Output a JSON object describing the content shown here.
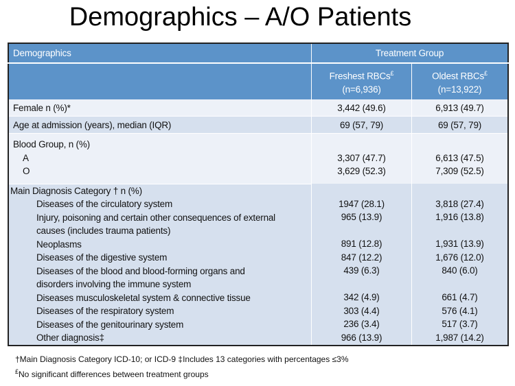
{
  "title": "Demographics – A/O Patients",
  "header": {
    "col1": "Demographics",
    "group": "Treatment Group",
    "fresh": "Freshest RBCs",
    "fresh_n": "(n=6,936)",
    "old": "Oldest RBCs",
    "old_n": "(n=13,922)",
    "mark": "£"
  },
  "rows": {
    "female": {
      "label": "Female n (%)*",
      "fresh": "3,442 (49.6)",
      "old": "6,913 (49.7)"
    },
    "age": {
      "label": "Age at admission (years), median (IQR)",
      "fresh": "69 (57, 79)",
      "old": "69 (57, 79)"
    },
    "blood": {
      "label": "Blood Group, n (%)",
      "a": {
        "label": "A",
        "fresh": "3,307 (47.7)",
        "old": "6,613 (47.5)"
      },
      "o": {
        "label": "O",
        "fresh": "3,629 (52.3)",
        "old": "7,309 (52.5)"
      }
    },
    "diag": {
      "label": "Main Diagnosis Category † n (%)",
      "items": [
        {
          "label": "Diseases of the circulatory system",
          "label2": "",
          "fresh": "1947 (28.1)",
          "old": "3,818 (27.4)"
        },
        {
          "label": "Injury, poisoning and certain other consequences of external",
          "label2": "causes (includes trauma patients)",
          "fresh": "965 (13.9)",
          "old": "1,916 (13.8)"
        },
        {
          "label": "Neoplasms",
          "label2": "",
          "fresh": "891 (12.8)",
          "old": "1,931 (13.9)"
        },
        {
          "label": "Diseases of the digestive system",
          "label2": "",
          "fresh": "847 (12.2)",
          "old": "1,676 (12.0)"
        },
        {
          "label": "Diseases of the blood and blood-forming organs and",
          "label2": "disorders involving the immune system",
          "fresh": "439 (6.3)",
          "old": "840 (6.0)"
        },
        {
          "label": "Diseases musculoskeletal system & connective tissue",
          "label2": "",
          "fresh": "342 (4.9)",
          "old": "661 (4.7)"
        },
        {
          "label": "Diseases of the respiratory system",
          "label2": "",
          "fresh": "303 (4.4)",
          "old": "576 (4.1)"
        },
        {
          "label": "Diseases of the genitourinary system",
          "label2": "",
          "fresh": "236 (3.4)",
          "old": "517 (3.7)"
        },
        {
          "label": "Other diagnosis‡",
          "label2": "",
          "fresh": "966 (13.9)",
          "old": "1,987 (14.2)"
        }
      ]
    }
  },
  "notes": {
    "line1": "†Main Diagnosis Category ICD-10; or ICD-9    ‡Includes 13 categories with percentages ≤3%",
    "line2_mark": "£",
    "line2": "No significant differences between treatment groups"
  }
}
